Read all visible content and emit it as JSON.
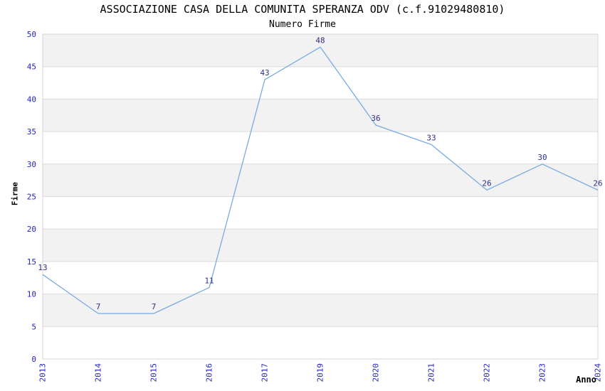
{
  "chart": {
    "title": "ASSOCIAZIONE CASA DELLA COMUNITA SPERANZA ODV (c.f.91029480810)",
    "subtitle": "Numero Firme",
    "xlabel": "Anno",
    "ylabel": "Firme"
  },
  "chart_data": {
    "type": "line",
    "title": "ASSOCIAZIONE CASA DELLA COMUNITA SPERANZA ODV (c.f.91029480810)",
    "subtitle": "Numero Firme",
    "xlabel": "Anno",
    "ylabel": "Firme",
    "categories": [
      "2013",
      "2014",
      "2015",
      "2016",
      "2017",
      "2019",
      "2020",
      "2021",
      "2022",
      "2023",
      "2024"
    ],
    "values": [
      13,
      7,
      7,
      11,
      43,
      48,
      36,
      33,
      26,
      30,
      26
    ],
    "ylim": [
      0,
      50
    ],
    "ytick_step": 5,
    "grid": "horizontal",
    "bands": "alternating-gray-white",
    "legend": "none",
    "data_labels": "above-points",
    "x_tick_rotation": -90,
    "colors": {
      "line": "#79abe2",
      "tick_labels": "#2424cc",
      "data_labels": "#2f2f85",
      "band": "#f2f2f2",
      "grid_line": "#dcdcdc",
      "border": "#d4d4d4",
      "title": "#1a1a1a",
      "subtitle": "#3a3a3a",
      "axis_title": "#111111"
    }
  }
}
